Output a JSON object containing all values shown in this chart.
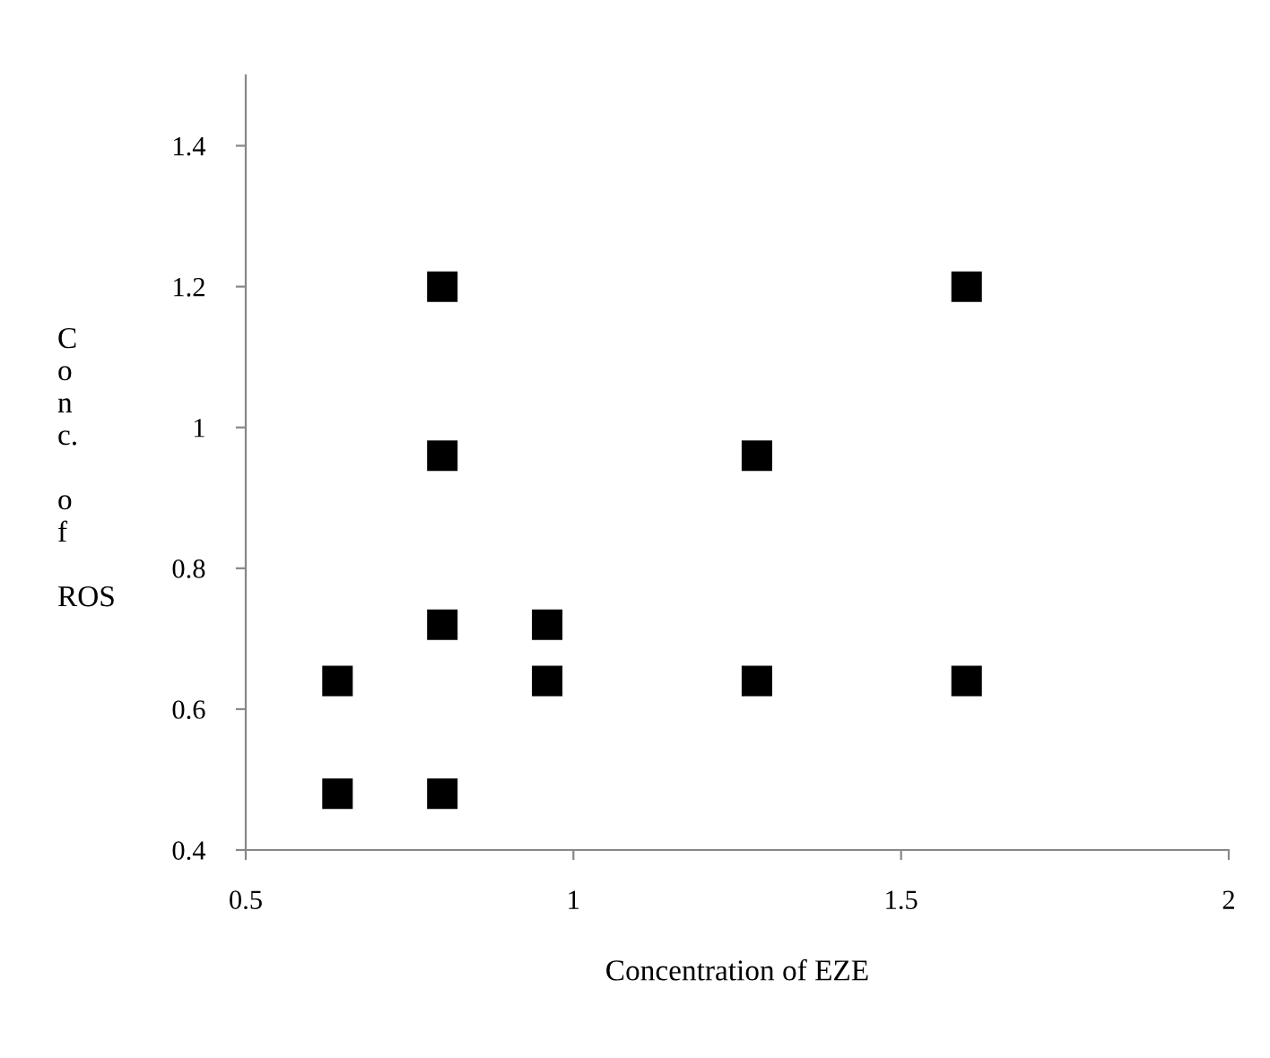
{
  "chart_data": {
    "type": "scatter",
    "xlabel": "Concentration of EZE",
    "ylabel": "Conc. of ROS",
    "x": [
      0.64,
      0.8,
      0.64,
      0.8,
      0.96,
      0.96,
      0.8,
      0.8,
      1.28,
      1.28,
      1.6,
      1.6
    ],
    "series": [
      {
        "color": "#000000",
        "values": [
          0.48,
          0.48,
          0.64,
          0.72,
          0.72,
          0.64,
          0.96,
          1.2,
          0.96,
          0.64,
          0.64,
          1.2
        ]
      }
    ],
    "xlim": [
      0.5,
      2
    ],
    "xticks": [
      {
        "value": 0.5,
        "label": "0.5"
      },
      1,
      {
        "value": 1.5,
        "label": "1.5"
      },
      2
    ],
    "ylim": [
      0.4,
      1.5
    ],
    "yticks": [
      {
        "value": 0.4,
        "label": "0.4"
      },
      {
        "value": 0.6,
        "label": "0.6"
      },
      {
        "value": 0.8,
        "label": "0.8"
      },
      1,
      {
        "value": 1.2,
        "label": "1.2"
      },
      {
        "value": 1.4,
        "label": "1.4"
      }
    ],
    "marker": "square",
    "grid": false,
    "legend": false
  }
}
